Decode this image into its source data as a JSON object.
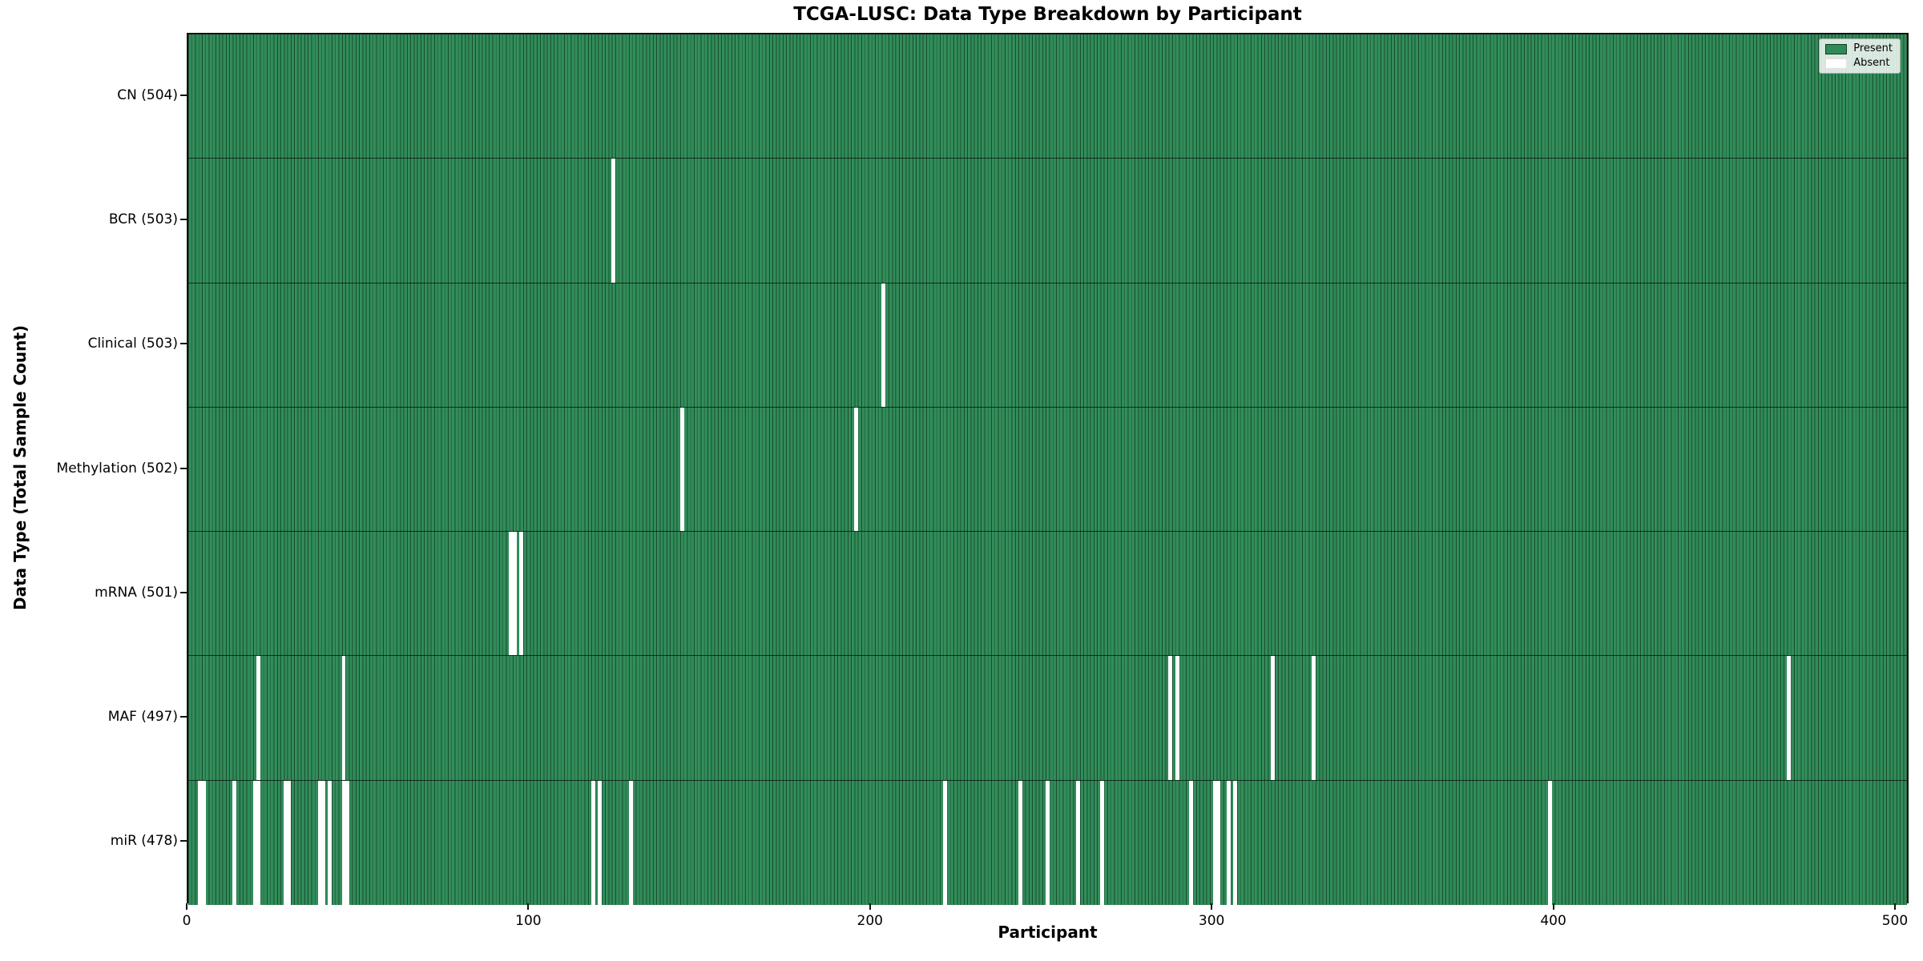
{
  "chart_data": {
    "type": "heatmap",
    "title": "TCGA-LUSC: Data Type Breakdown by Participant",
    "xlabel": "Participant",
    "ylabel": "Data Type (Total Sample Count)",
    "xlim": [
      0,
      504
    ],
    "x_tick_values": [
      0,
      100,
      200,
      300,
      400,
      500
    ],
    "x_tick_labels": [
      "0",
      "100",
      "200",
      "300",
      "400",
      "500"
    ],
    "total_participants": 504,
    "grid": false,
    "present_color": "#2e8b57",
    "absent_color": "#ffffff",
    "legend": {
      "position": "upper right",
      "entries": [
        {
          "label": "Present",
          "color": "#2e8b57"
        },
        {
          "label": "Absent",
          "color": "#ffffff"
        }
      ]
    },
    "rows": [
      {
        "data_type": "CN",
        "label": "CN (504)",
        "present_count": 504,
        "absent_participants": []
      },
      {
        "data_type": "BCR",
        "label": "BCR (503)",
        "present_count": 503,
        "absent_participants": [
          124
        ]
      },
      {
        "data_type": "Clinical",
        "label": "Clinical (503)",
        "present_count": 503,
        "absent_participants": [
          203
        ]
      },
      {
        "data_type": "Methylation",
        "label": "Methylation (502)",
        "present_count": 502,
        "absent_participants": [
          144,
          195
        ]
      },
      {
        "data_type": "mRNA",
        "label": "mRNA (501)",
        "present_count": 501,
        "absent_participants": [
          94,
          95,
          97
        ]
      },
      {
        "data_type": "MAF",
        "label": "MAF (497)",
        "present_count": 497,
        "absent_participants": [
          20,
          45,
          287,
          289,
          317,
          329,
          468
        ]
      },
      {
        "data_type": "miR",
        "label": "miR (478)",
        "present_count": 478,
        "absent_participants": [
          3,
          4,
          13,
          19,
          20,
          28,
          29,
          38,
          39,
          41,
          45,
          46,
          118,
          120,
          129,
          221,
          243,
          251,
          260,
          267,
          293,
          300,
          301,
          304,
          306,
          398
        ]
      }
    ]
  }
}
